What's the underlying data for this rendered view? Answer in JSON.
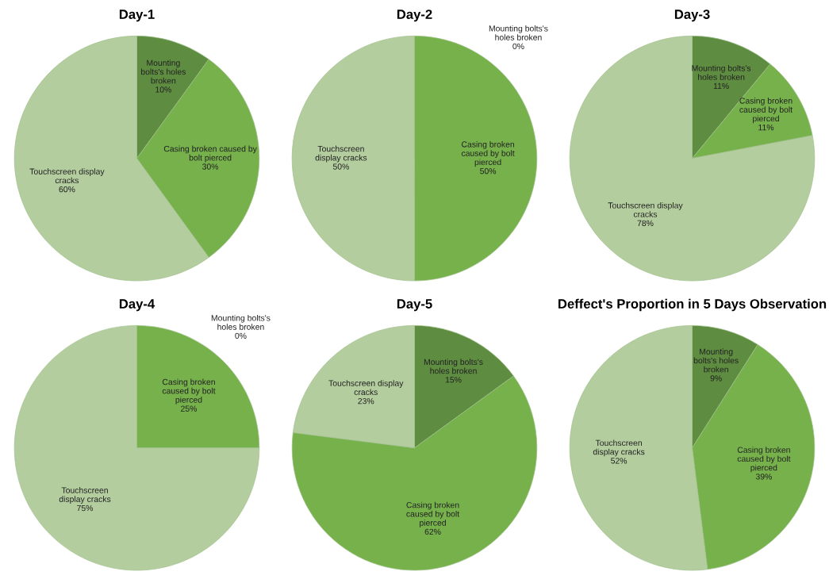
{
  "chart_data": [
    {
      "type": "pie",
      "title": "Day-1",
      "categories": [
        "Mounting\nbolts's holes\nbroken",
        "Casing broken caused by\nbolt pierced",
        "Touchscreen display\ncracks"
      ],
      "values": [
        10,
        30,
        60
      ],
      "value_labels": [
        "10%",
        "30%",
        "60%"
      ],
      "colors": [
        "#5e8c41",
        "#76b14c",
        "#b3cd9f"
      ]
    },
    {
      "type": "pie",
      "title": "Day-2",
      "categories": [
        "Mounting bolts's\nholes broken",
        "Casing broken\ncaused by bolt\npierced",
        "Touchscreen\ndisplay cracks"
      ],
      "values": [
        0,
        50,
        50
      ],
      "value_labels": [
        "0%",
        "50%",
        "50%"
      ],
      "colors": [
        "#5e8c41",
        "#76b14c",
        "#b3cd9f"
      ]
    },
    {
      "type": "pie",
      "title": "Day-3",
      "categories": [
        "Mounting bolts's\nholes broken",
        "Casing broken\ncaused by bolt\npierced",
        "Touchscreen display\ncracks"
      ],
      "values": [
        11,
        11,
        78
      ],
      "value_labels": [
        "11%",
        "11%",
        "78%"
      ],
      "colors": [
        "#5e8c41",
        "#76b14c",
        "#b3cd9f"
      ]
    },
    {
      "type": "pie",
      "title": "Day-4",
      "categories": [
        "Mounting bolts's\nholes broken",
        "Casing broken\ncaused by bolt\npierced",
        "Touchscreen\ndisplay cracks"
      ],
      "values": [
        0,
        25,
        75
      ],
      "value_labels": [
        "0%",
        "25%",
        "75%"
      ],
      "colors": [
        "#5e8c41",
        "#76b14c",
        "#b3cd9f"
      ]
    },
    {
      "type": "pie",
      "title": "Day-5",
      "categories": [
        "Mounting bolts's\nholes broken",
        "Casing broken\ncaused by bolt\npierced",
        "Touchscreen display\ncracks"
      ],
      "values": [
        15,
        62,
        23
      ],
      "value_labels": [
        "15%",
        "62%",
        "23%"
      ],
      "colors": [
        "#5e8c41",
        "#76b14c",
        "#b3cd9f"
      ]
    },
    {
      "type": "pie",
      "title": "Deffect's Proportion in 5 Days Observation",
      "categories": [
        "Mounting\nbolts's holes\nbroken",
        "Casing broken\ncaused by bolt\npierced",
        "Touchscreen\ndisplay cracks"
      ],
      "values": [
        9,
        39,
        52
      ],
      "value_labels": [
        "9%",
        "39%",
        "52%"
      ],
      "colors": [
        "#5e8c41",
        "#76b14c",
        "#b3cd9f"
      ]
    }
  ]
}
